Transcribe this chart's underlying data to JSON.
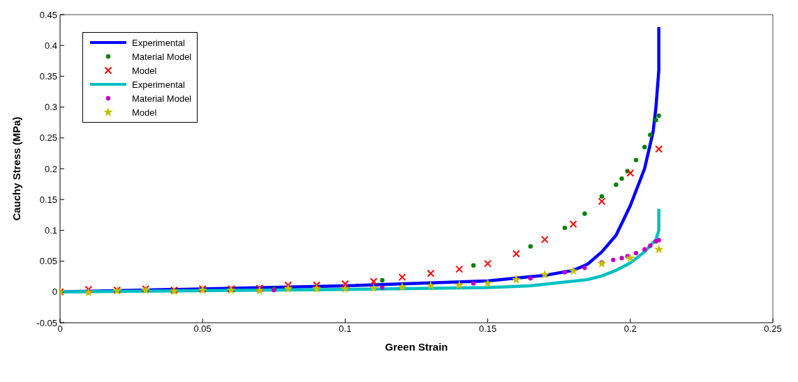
{
  "chart_data": {
    "type": "line",
    "xlabel": "Green Strain",
    "ylabel": "Cauchy Stress (MPa)",
    "xlim": [
      0,
      0.25
    ],
    "xticks": [
      0,
      0.05,
      0.1,
      0.15,
      0.2,
      0.25
    ],
    "ylim": [
      -0.05,
      0.45
    ],
    "yticks": [
      -0.05,
      0,
      0.05,
      0.1,
      0.15,
      0.2,
      0.25,
      0.3,
      0.35,
      0.4,
      0.45
    ],
    "grid": false,
    "legend": "top left",
    "series": [
      {
        "name": "Experimental",
        "marker": "none",
        "line_style": "solid",
        "color": "#0000ff",
        "x": [
          0,
          0.1,
          0.15,
          0.17,
          0.18,
          0.185,
          0.19,
          0.195,
          0.2,
          0.205,
          0.208,
          0.209,
          0.21,
          0.21
        ],
        "values": [
          0,
          0.01,
          0.018,
          0.027,
          0.035,
          0.045,
          0.065,
          0.092,
          0.14,
          0.2,
          0.26,
          0.3,
          0.36,
          0.43
        ]
      },
      {
        "name": "Material Model",
        "type": "scatter",
        "marker": "circle",
        "color": "#008000",
        "x": [
          0.075,
          0.113,
          0.145,
          0.165,
          0.177,
          0.184,
          0.19,
          0.195,
          0.197,
          0.199,
          0.202,
          0.205,
          0.207,
          0.209,
          0.21
        ],
        "values": [
          0.005,
          0.019,
          0.043,
          0.074,
          0.104,
          0.127,
          0.155,
          0.174,
          0.184,
          0.196,
          0.214,
          0.235,
          0.255,
          0.279,
          0.286
        ]
      },
      {
        "name": "Model",
        "type": "scatter",
        "marker": "cross",
        "color": "#ff0000",
        "x": [
          0,
          0.01,
          0.02,
          0.03,
          0.04,
          0.05,
          0.06,
          0.07,
          0.08,
          0.09,
          0.1,
          0.11,
          0.12,
          0.13,
          0.14,
          0.15,
          0.16,
          0.17,
          0.18,
          0.19,
          0.2,
          0.21
        ],
        "values": [
          0,
          0.004,
          0.003,
          0.005,
          0.003,
          0.005,
          0.005,
          0.006,
          0.011,
          0.011,
          0.013,
          0.017,
          0.024,
          0.03,
          0.037,
          0.046,
          0.062,
          0.085,
          0.11,
          0.147,
          0.193,
          0.232
        ]
      },
      {
        "name": "Experimental",
        "marker": "none",
        "line_style": "solid",
        "color": "#00c0c0",
        "x": [
          0,
          0.1,
          0.15,
          0.165,
          0.175,
          0.185,
          0.19,
          0.195,
          0.2,
          0.205,
          0.209,
          0.21,
          0.21
        ],
        "values": [
          0,
          0.004,
          0.007,
          0.01,
          0.015,
          0.02,
          0.026,
          0.035,
          0.047,
          0.065,
          0.085,
          0.1,
          0.135
        ]
      },
      {
        "name": "Material Model",
        "type": "scatter",
        "marker": "circle",
        "color": "#c000c0",
        "x": [
          0.075,
          0.113,
          0.145,
          0.165,
          0.177,
          0.184,
          0.19,
          0.194,
          0.197,
          0.199,
          0.202,
          0.205,
          0.207,
          0.209,
          0.21
        ],
        "values": [
          0.003,
          0.007,
          0.014,
          0.022,
          0.032,
          0.039,
          0.048,
          0.052,
          0.055,
          0.058,
          0.063,
          0.069,
          0.075,
          0.082,
          0.084
        ]
      },
      {
        "name": "Model",
        "type": "scatter",
        "marker": "star",
        "color": "#c0c000",
        "x": [
          0,
          0.01,
          0.02,
          0.03,
          0.04,
          0.05,
          0.06,
          0.07,
          0.08,
          0.09,
          0.1,
          0.11,
          0.12,
          0.13,
          0.14,
          0.15,
          0.16,
          0.17,
          0.18,
          0.19,
          0.2,
          0.21
        ],
        "values": [
          0,
          -0.001,
          0.002,
          0.003,
          0.001,
          0.003,
          0.003,
          0.002,
          0.005,
          0.005,
          0.005,
          0.006,
          0.008,
          0.01,
          0.011,
          0.014,
          0.02,
          0.028,
          0.034,
          0.046,
          0.055,
          0.069
        ]
      }
    ]
  }
}
